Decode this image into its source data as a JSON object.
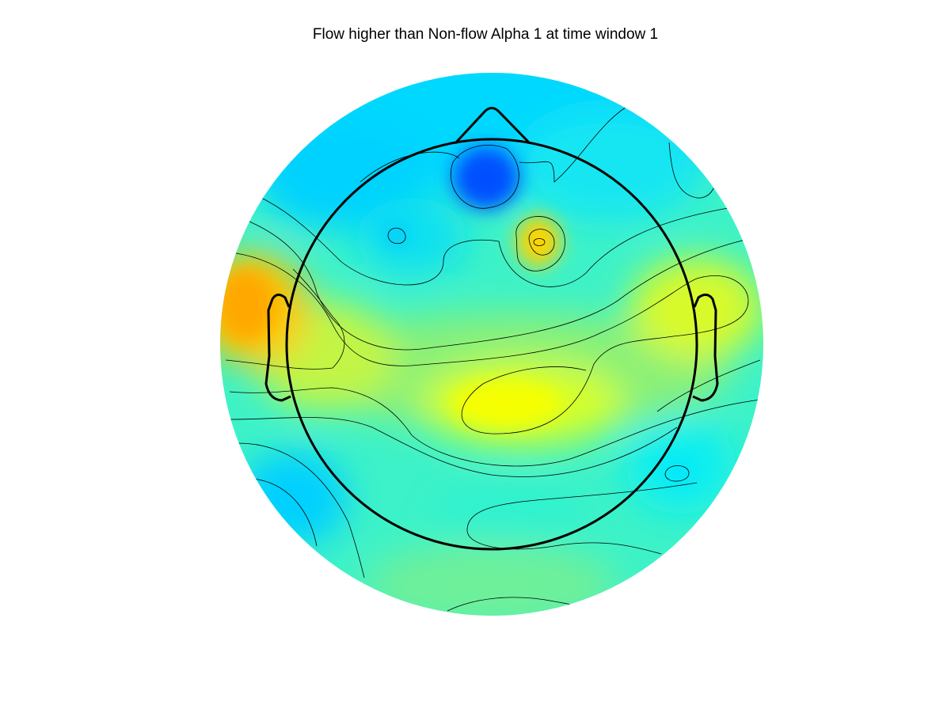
{
  "chart_data": {
    "type": "heatmap",
    "subtype": "eeg-scalp-topography",
    "title": "Flow higher than Non-flow Alpha 1 at time window 1",
    "colormap": "jet",
    "colorbar": false,
    "contour_lines": true,
    "value_scale": "relative (no colorbar shown)",
    "blobs": [
      {
        "region": "frontal midline (Fpz)",
        "level": "low",
        "color": "#0061ff"
      },
      {
        "region": "frontal-central right (F2)",
        "level": "high",
        "color": "#ffd800"
      },
      {
        "region": "left temporal (T7)",
        "level": "highest",
        "color": "#ffaa00"
      },
      {
        "region": "right temporal (T8)",
        "level": "high",
        "color": "#eef700"
      },
      {
        "region": "centro-parietal right (CP2)",
        "level": "high",
        "color": "#f4ff00"
      },
      {
        "region": "left parietal-occipital (PO7)",
        "level": "low",
        "color": "#00c8ff"
      },
      {
        "region": "left frontal-lateral (AF7)",
        "level": "low",
        "color": "#00d6ff"
      },
      {
        "region": "right parietal (P8)",
        "level": "low",
        "color": "#00e8ff"
      }
    ]
  }
}
